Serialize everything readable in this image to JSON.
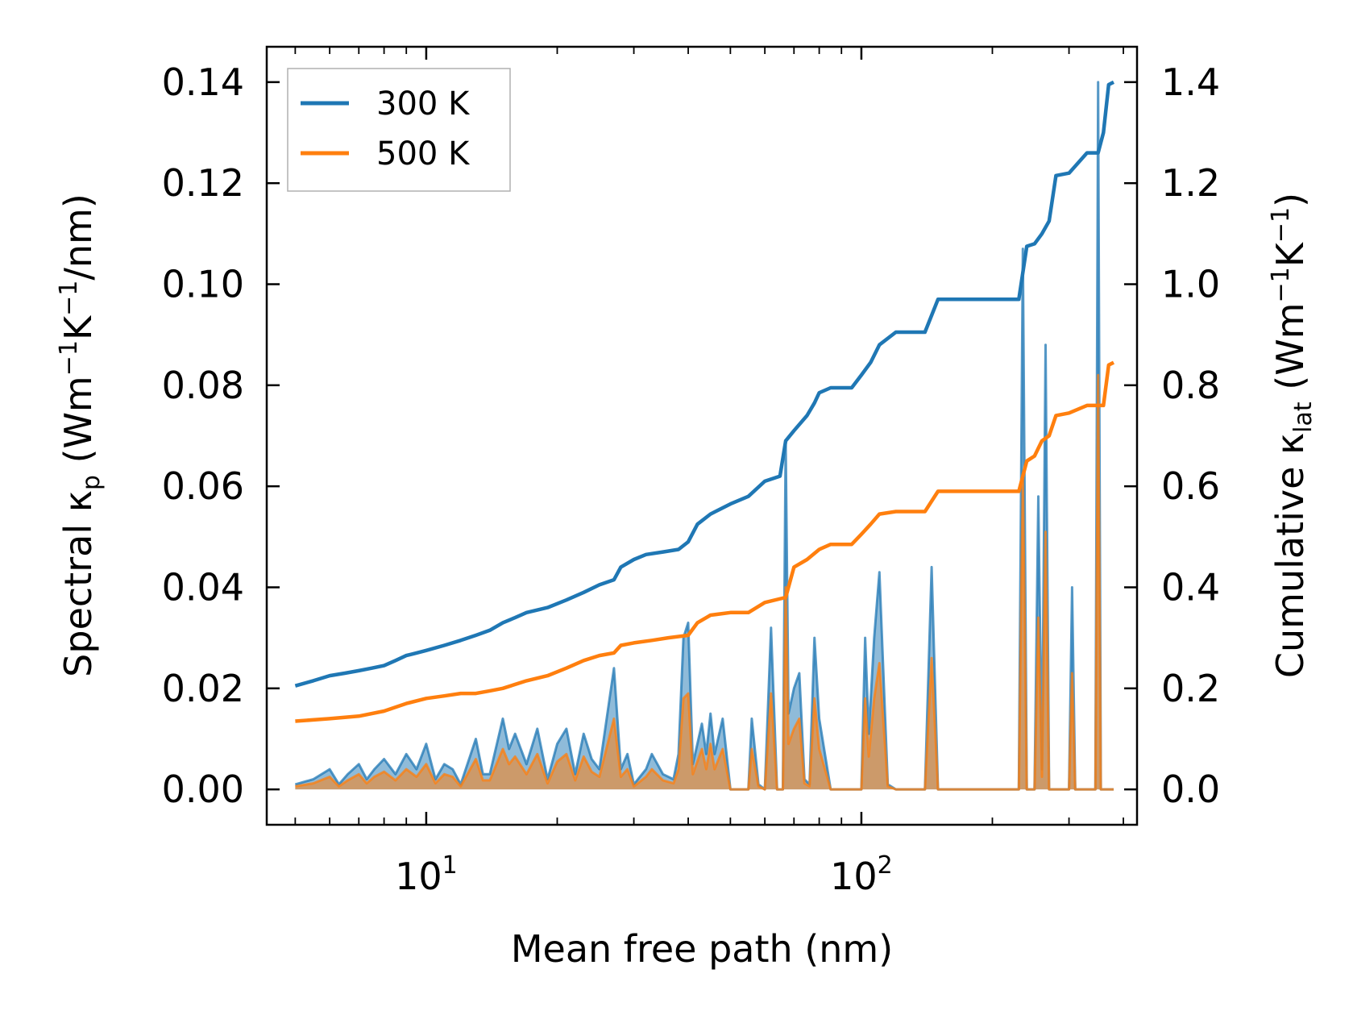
{
  "chart_data": {
    "type": "line",
    "x_scale": "log",
    "xlim": [
      4.3,
      430
    ],
    "ylim_left": [
      -0.007,
      0.147
    ],
    "ylim_right": [
      -0.07,
      1.47
    ],
    "grid": false,
    "legend_position": "top-left",
    "xlabel": "Mean free path (nm)",
    "ylabel_left": {
      "prefix": "Spectral κ",
      "sub": "p",
      "units_a": " (Wm",
      "sup_a": "−1",
      "units_b": "K",
      "sup_b": "−1",
      "units_c": "/nm)"
    },
    "ylabel_right": {
      "prefix": "Cumulative κ",
      "sub": "lat",
      "units_a": " (Wm",
      "sup_a": "−1",
      "units_b": "K",
      "sup_b": "−1",
      "units_c": ")"
    },
    "x_ticks": [
      {
        "value": 10,
        "base": "10",
        "exp": "1"
      },
      {
        "value": 100,
        "base": "10",
        "exp": "2"
      }
    ],
    "y_ticks_left": [
      {
        "value": 0.0,
        "label": "0.00"
      },
      {
        "value": 0.02,
        "label": "0.02"
      },
      {
        "value": 0.04,
        "label": "0.04"
      },
      {
        "value": 0.06,
        "label": "0.06"
      },
      {
        "value": 0.08,
        "label": "0.08"
      },
      {
        "value": 0.1,
        "label": "0.10"
      },
      {
        "value": 0.12,
        "label": "0.12"
      },
      {
        "value": 0.14,
        "label": "0.14"
      }
    ],
    "y_ticks_right": [
      {
        "value": 0.0,
        "label": "0.0"
      },
      {
        "value": 0.2,
        "label": "0.2"
      },
      {
        "value": 0.4,
        "label": "0.4"
      },
      {
        "value": 0.6,
        "label": "0.6"
      },
      {
        "value": 0.8,
        "label": "0.8"
      },
      {
        "value": 1.0,
        "label": "1.0"
      },
      {
        "value": 1.2,
        "label": "1.2"
      },
      {
        "value": 1.4,
        "label": "1.4"
      }
    ],
    "series": [
      {
        "name": "300 K",
        "color": "#1f77b4",
        "cumulative": {
          "axis": "right",
          "x": [
            5.0,
            5.5,
            6.0,
            6.5,
            7.0,
            7.5,
            8.0,
            8.5,
            9.0,
            9.5,
            10.0,
            11.0,
            12.0,
            13.0,
            14.0,
            15.0,
            16.0,
            17.0,
            19.0,
            21.0,
            23.0,
            25.0,
            27.0,
            28.0,
            30.0,
            32.0,
            35.0,
            38.0,
            40.0,
            42.0,
            45.0,
            50.0,
            55.0,
            60.0,
            65.0,
            67.0,
            70.0,
            75.0,
            78.0,
            80.0,
            85.0,
            95.0,
            100.0,
            105.0,
            110.0,
            120.0,
            140.0,
            150.0,
            200.0,
            230.0,
            240.0,
            250.0,
            260.0,
            270.0,
            280.0,
            300.0,
            330.0,
            350.0,
            360.0,
            370.0,
            380.0
          ],
          "y": [
            0.205,
            0.215,
            0.225,
            0.23,
            0.235,
            0.24,
            0.245,
            0.255,
            0.265,
            0.27,
            0.275,
            0.285,
            0.295,
            0.305,
            0.315,
            0.33,
            0.34,
            0.35,
            0.36,
            0.375,
            0.39,
            0.405,
            0.415,
            0.44,
            0.455,
            0.465,
            0.47,
            0.475,
            0.49,
            0.525,
            0.545,
            0.565,
            0.58,
            0.61,
            0.62,
            0.69,
            0.71,
            0.74,
            0.765,
            0.785,
            0.795,
            0.795,
            0.82,
            0.845,
            0.88,
            0.905,
            0.905,
            0.97,
            0.97,
            0.97,
            1.075,
            1.08,
            1.1,
            1.125,
            1.215,
            1.22,
            1.26,
            1.26,
            1.3,
            1.395,
            1.4
          ]
        },
        "spectral": {
          "axis": "left",
          "x": [
            5.0,
            5.5,
            6.0,
            6.3,
            6.6,
            7.0,
            7.3,
            7.6,
            8.0,
            8.5,
            9.0,
            9.5,
            10.0,
            10.5,
            11.0,
            11.5,
            12.0,
            13.0,
            13.5,
            14.0,
            15.0,
            15.5,
            16.0,
            17.0,
            18.0,
            19.0,
            20.0,
            21.0,
            22.0,
            23.0,
            24.0,
            25.0,
            27.0,
            28.0,
            29.0,
            30.0,
            32.0,
            33.0,
            35.0,
            37.0,
            38.0,
            39.0,
            40.0,
            41.0,
            43.0,
            44.0,
            45.0,
            46.0,
            48.0,
            50.0,
            55.0,
            56.0,
            58.0,
            60.0,
            62.0,
            64.0,
            66.0,
            67.0,
            68.0,
            70.0,
            72.0,
            74.0,
            76.0,
            78.0,
            80.0,
            85.0,
            95.0,
            100.0,
            102.0,
            104.0,
            107.0,
            110.0,
            115.0,
            120.0,
            140.0,
            145.0,
            150.0,
            160.0,
            220.0,
            225.0,
            230.0,
            235.0,
            240.0,
            245.0,
            250.0,
            255.0,
            260.0,
            265.0,
            270.0,
            275.0,
            280.0,
            290.0,
            300.0,
            305.0,
            310.0,
            330.0,
            345.0,
            350.0,
            355.0,
            360.0,
            370.0,
            380.0
          ],
          "y": [
            0.001,
            0.002,
            0.004,
            0.001,
            0.003,
            0.005,
            0.002,
            0.004,
            0.006,
            0.003,
            0.007,
            0.004,
            0.009,
            0.002,
            0.005,
            0.004,
            0.001,
            0.01,
            0.003,
            0.003,
            0.014,
            0.008,
            0.011,
            0.005,
            0.012,
            0.002,
            0.009,
            0.012,
            0.003,
            0.011,
            0.006,
            0.004,
            0.024,
            0.004,
            0.007,
            0.001,
            0.004,
            0.007,
            0.003,
            0.002,
            0.007,
            0.03,
            0.033,
            0.005,
            0.013,
            0.007,
            0.015,
            0.007,
            0.014,
            0.0,
            0.0,
            0.014,
            0.001,
            0.0,
            0.032,
            0.0,
            0.0,
            0.069,
            0.015,
            0.02,
            0.023,
            0.002,
            0.001,
            0.03,
            0.014,
            0.0,
            0.0,
            0.0,
            0.03,
            0.011,
            0.03,
            0.043,
            0.001,
            0.0,
            0.0,
            0.044,
            0.0,
            0.0,
            0.0,
            0.0,
            0.0,
            0.107,
            0.0,
            0.0,
            0.0,
            0.058,
            0.004,
            0.088,
            0.0,
            0.0,
            0.0,
            0.0,
            0.0,
            0.04,
            0.0,
            0.0,
            0.0,
            0.14,
            0.0,
            0.0,
            0.0,
            0.0
          ]
        }
      },
      {
        "name": "500 K",
        "color": "#ff7f0e",
        "cumulative": {
          "axis": "right",
          "x": [
            5.0,
            6.0,
            7.0,
            8.0,
            9.0,
            10.0,
            11.0,
            12.0,
            13.0,
            14.0,
            15.0,
            17.0,
            19.0,
            21.0,
            23.0,
            25.0,
            27.0,
            28.0,
            30.0,
            33.0,
            36.0,
            40.0,
            42.0,
            45.0,
            50.0,
            55.0,
            60.0,
            67.0,
            70.0,
            75.0,
            80.0,
            85.0,
            95.0,
            100.0,
            105.0,
            110.0,
            120.0,
            140.0,
            150.0,
            200.0,
            230.0,
            240.0,
            250.0,
            260.0,
            270.0,
            280.0,
            300.0,
            330.0,
            350.0,
            360.0,
            370.0,
            380.0
          ],
          "y": [
            0.135,
            0.14,
            0.145,
            0.155,
            0.17,
            0.18,
            0.185,
            0.19,
            0.19,
            0.195,
            0.2,
            0.215,
            0.225,
            0.24,
            0.255,
            0.265,
            0.27,
            0.285,
            0.29,
            0.295,
            0.3,
            0.305,
            0.33,
            0.345,
            0.35,
            0.35,
            0.37,
            0.38,
            0.44,
            0.455,
            0.475,
            0.485,
            0.485,
            0.505,
            0.525,
            0.545,
            0.55,
            0.55,
            0.59,
            0.59,
            0.59,
            0.65,
            0.66,
            0.69,
            0.7,
            0.74,
            0.745,
            0.76,
            0.76,
            0.76,
            0.84,
            0.845
          ]
        },
        "spectral": {
          "axis": "left",
          "x": [
            5.0,
            5.5,
            6.0,
            6.3,
            6.6,
            7.0,
            7.3,
            7.6,
            8.0,
            8.5,
            9.0,
            9.5,
            10.0,
            10.5,
            11.0,
            11.5,
            12.0,
            13.0,
            13.5,
            14.0,
            15.0,
            15.5,
            16.0,
            17.0,
            18.0,
            19.0,
            20.0,
            21.0,
            22.0,
            23.0,
            24.0,
            25.0,
            27.0,
            28.0,
            29.0,
            30.0,
            32.0,
            33.0,
            35.0,
            37.0,
            38.0,
            39.0,
            40.0,
            41.0,
            43.0,
            44.0,
            45.0,
            46.0,
            48.0,
            50.0,
            55.0,
            56.0,
            58.0,
            60.0,
            62.0,
            64.0,
            66.0,
            67.0,
            68.0,
            70.0,
            72.0,
            74.0,
            76.0,
            78.0,
            80.0,
            85.0,
            95.0,
            100.0,
            102.0,
            104.0,
            107.0,
            110.0,
            115.0,
            120.0,
            140.0,
            145.0,
            150.0,
            160.0,
            220.0,
            225.0,
            230.0,
            235.0,
            240.0,
            245.0,
            250.0,
            255.0,
            260.0,
            265.0,
            270.0,
            275.0,
            280.0,
            290.0,
            300.0,
            305.0,
            310.0,
            330.0,
            345.0,
            350.0,
            355.0,
            360.0,
            370.0,
            380.0
          ],
          "y": [
            0.0006,
            0.0012,
            0.0025,
            0.0006,
            0.0018,
            0.003,
            0.0012,
            0.0025,
            0.0035,
            0.0018,
            0.004,
            0.0025,
            0.005,
            0.0012,
            0.003,
            0.0025,
            0.0006,
            0.006,
            0.0018,
            0.0018,
            0.008,
            0.005,
            0.0065,
            0.003,
            0.007,
            0.0012,
            0.0055,
            0.007,
            0.0018,
            0.0065,
            0.0035,
            0.0025,
            0.014,
            0.0025,
            0.004,
            0.0006,
            0.0025,
            0.004,
            0.0018,
            0.0012,
            0.004,
            0.018,
            0.019,
            0.003,
            0.008,
            0.004,
            0.009,
            0.004,
            0.008,
            0.0,
            0.0,
            0.008,
            0.0006,
            0.0,
            0.019,
            0.0,
            0.0,
            0.04,
            0.009,
            0.012,
            0.014,
            0.0012,
            0.0006,
            0.018,
            0.008,
            0.0,
            0.0,
            0.0,
            0.018,
            0.0065,
            0.018,
            0.025,
            0.0006,
            0.0,
            0.0,
            0.026,
            0.0,
            0.0,
            0.0,
            0.0,
            0.0,
            0.062,
            0.0,
            0.0,
            0.0,
            0.034,
            0.0025,
            0.051,
            0.0,
            0.0,
            0.0,
            0.0,
            0.0,
            0.023,
            0.0,
            0.0,
            0.0,
            0.082,
            0.0,
            0.0,
            0.0,
            0.0
          ]
        }
      }
    ]
  }
}
